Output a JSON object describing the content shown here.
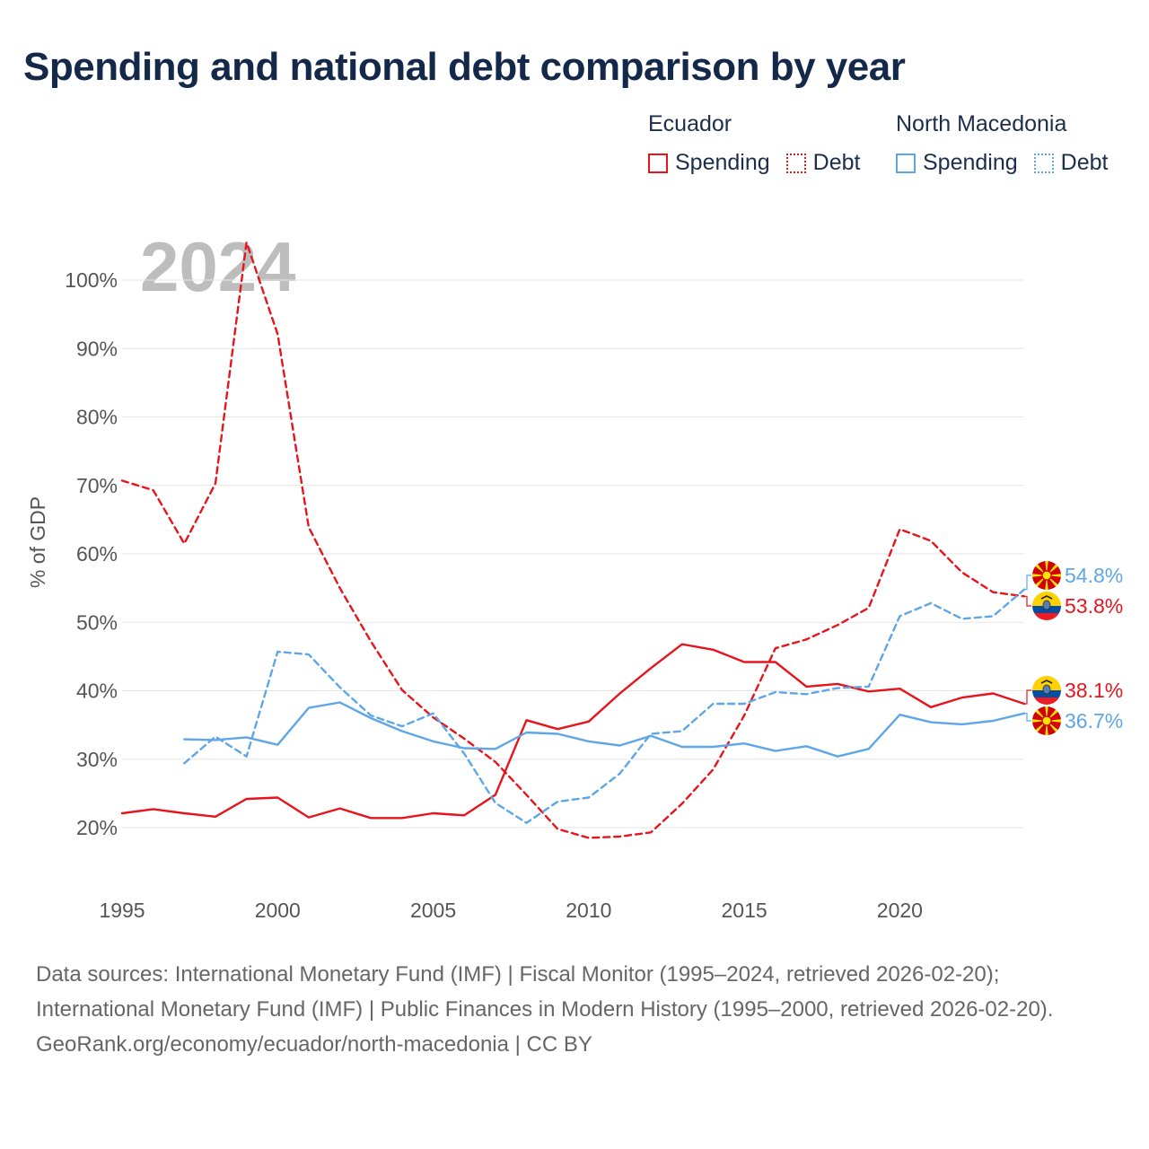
{
  "title": "Spending and national debt comparison by year",
  "legend": {
    "groups": [
      {
        "name": "Ecuador",
        "color": "#e8141c",
        "items": [
          "Spending",
          "Debt"
        ]
      },
      {
        "name": "North Macedonia",
        "color": "#5ea6e6",
        "items": [
          "Spending",
          "Debt"
        ]
      }
    ]
  },
  "footer": {
    "sources": "Data sources: International Monetary Fund (IMF) | Fiscal Monitor (1995–2024, retrieved 2026-02-20); International Monetary Fund (IMF) | Public Finances in Modern History (1995–2000, retrieved 2026-02-20).",
    "credit": "GeoRank.org/economy/ecuador/north-macedonia | CC BY"
  },
  "chart_data": {
    "type": "line",
    "year_label": "2024",
    "ylabel": "% of GDP",
    "xlim": [
      1995,
      2024
    ],
    "ylim": [
      15,
      107
    ],
    "x_ticks": [
      1995,
      2000,
      2005,
      2010,
      2015,
      2020
    ],
    "y_ticks": [
      20,
      30,
      40,
      50,
      60,
      70,
      80,
      90,
      100
    ],
    "y_tick_labels": [
      "20%",
      "30%",
      "40%",
      "50%",
      "60%",
      "70%",
      "80%",
      "90%",
      "100%"
    ],
    "series": [
      {
        "name": "Ecuador Spending",
        "country": "Ecuador",
        "measure": "Spending",
        "color": "#e8141c",
        "dashed": false,
        "end_label": "38.1%",
        "x": [
          1995,
          1996,
          1997,
          1998,
          1999,
          2000,
          2001,
          2002,
          2003,
          2004,
          2005,
          2006,
          2007,
          2008,
          2009,
          2010,
          2011,
          2012,
          2013,
          2014,
          2015,
          2016,
          2017,
          2018,
          2019,
          2020,
          2021,
          2022,
          2023,
          2024
        ],
        "values": [
          22.1,
          22.7,
          22.1,
          21.6,
          24.2,
          24.4,
          21.5,
          22.8,
          21.4,
          21.4,
          22.1,
          21.8,
          24.8,
          35.7,
          34.4,
          35.5,
          39.6,
          43.3,
          46.8,
          46.0,
          44.2,
          44.2,
          40.6,
          41.0,
          39.9,
          40.3,
          37.6,
          39.0,
          39.6,
          38.1
        ]
      },
      {
        "name": "Ecuador Debt",
        "country": "Ecuador",
        "measure": "Debt",
        "color": "#e8141c",
        "dashed": true,
        "end_label": "53.8%",
        "x": [
          1995,
          1996,
          1997,
          1998,
          1999,
          2000,
          2001,
          2002,
          2003,
          2004,
          2005,
          2006,
          2007,
          2008,
          2009,
          2010,
          2011,
          2012,
          2013,
          2014,
          2015,
          2016,
          2017,
          2018,
          2019,
          2020,
          2021,
          2022,
          2023,
          2024
        ],
        "values": [
          70.7,
          69.3,
          61.5,
          70.3,
          105.5,
          92.1,
          63.9,
          55.0,
          47.2,
          40.1,
          36.1,
          33.0,
          29.6,
          24.8,
          19.8,
          18.5,
          18.7,
          19.3,
          23.5,
          28.5,
          36.4,
          46.2,
          47.5,
          49.6,
          52.1,
          63.6,
          61.9,
          57.3,
          54.4,
          53.8
        ]
      },
      {
        "name": "North Macedonia Spending",
        "country": "North Macedonia",
        "measure": "Spending",
        "color": "#5ea6e6",
        "dashed": false,
        "end_label": "36.7%",
        "x": [
          1997,
          1998,
          1999,
          2000,
          2001,
          2002,
          2003,
          2004,
          2005,
          2006,
          2007,
          2008,
          2009,
          2010,
          2011,
          2012,
          2013,
          2014,
          2015,
          2016,
          2017,
          2018,
          2019,
          2020,
          2021,
          2022,
          2023,
          2024
        ],
        "values": [
          32.9,
          32.8,
          33.2,
          32.1,
          37.5,
          38.3,
          36.0,
          34.1,
          32.6,
          31.6,
          31.5,
          33.9,
          33.7,
          32.6,
          32.0,
          33.4,
          31.8,
          31.8,
          32.3,
          31.2,
          31.9,
          30.4,
          31.5,
          36.5,
          35.4,
          35.1,
          35.6,
          36.7
        ]
      },
      {
        "name": "North Macedonia Debt",
        "country": "North Macedonia",
        "measure": "Debt",
        "color": "#5ea6e6",
        "dashed": true,
        "end_label": "54.8%",
        "x": [
          1997,
          1998,
          1999,
          2000,
          2001,
          2002,
          2003,
          2004,
          2005,
          2006,
          2007,
          2008,
          2009,
          2010,
          2011,
          2012,
          2013,
          2014,
          2015,
          2016,
          2017,
          2018,
          2019,
          2020,
          2021,
          2022,
          2023,
          2024
        ],
        "values": [
          29.4,
          33.3,
          30.4,
          45.7,
          45.3,
          40.5,
          36.4,
          34.8,
          36.7,
          30.8,
          23.6,
          20.7,
          23.8,
          24.4,
          27.9,
          33.7,
          34.1,
          38.1,
          38.1,
          39.8,
          39.5,
          40.4,
          40.6,
          50.9,
          52.8,
          50.5,
          50.9,
          54.8
        ]
      }
    ]
  }
}
